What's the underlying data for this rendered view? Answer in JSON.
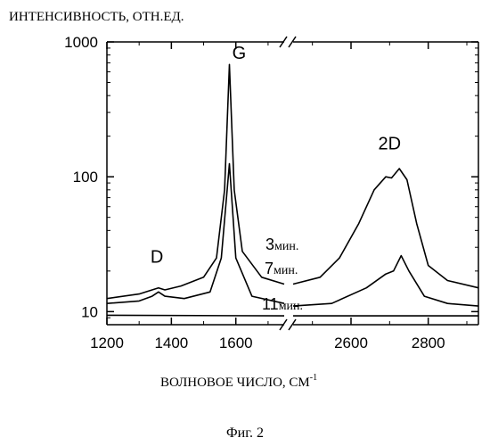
{
  "chart_data": {
    "type": "line",
    "ylabel": "ИНТЕНСИВНОСТЬ, ОТН.ЕД.",
    "xlabel_main": "ВОЛНОВОЕ ЧИСЛО, СМ",
    "xlabel_sup": "-1",
    "figure_caption": "Фиг. 2",
    "y_scale": "log",
    "ylim": [
      8,
      1000
    ],
    "y_ticks": [
      10,
      100,
      1000
    ],
    "y_tick_labels": [
      "10",
      "100",
      "1000"
    ],
    "x_axis_break": true,
    "x_segments": [
      {
        "xlim": [
          1200,
          1750
        ],
        "ticks": [
          1200,
          1400,
          1600
        ],
        "tick_labels": [
          "1200",
          "1400",
          "1600"
        ]
      },
      {
        "xlim": [
          2450,
          2930
        ],
        "ticks": [
          2600,
          2800
        ],
        "tick_labels": [
          "2600",
          "2800"
        ]
      }
    ],
    "peak_labels": [
      {
        "text": "D",
        "x": 1355,
        "y": 23
      },
      {
        "text": "G",
        "x": 1610,
        "y": 750
      },
      {
        "text": "2D",
        "x": 2700,
        "y": 160
      }
    ],
    "series": [
      {
        "name": "3 мин.",
        "label_parts": [
          "3",
          "мин."
        ],
        "points": [
          [
            1200,
            12.5
          ],
          [
            1300,
            13.5
          ],
          [
            1340,
            14.5
          ],
          [
            1360,
            15
          ],
          [
            1380,
            14.5
          ],
          [
            1430,
            15.5
          ],
          [
            1500,
            18
          ],
          [
            1540,
            25
          ],
          [
            1565,
            80
          ],
          [
            1580,
            680
          ],
          [
            1595,
            80
          ],
          [
            1620,
            28
          ],
          [
            1680,
            18
          ],
          [
            1750,
            16
          ],
          [
            2450,
            16
          ],
          [
            2520,
            18
          ],
          [
            2570,
            25
          ],
          [
            2620,
            45
          ],
          [
            2660,
            80
          ],
          [
            2690,
            100
          ],
          [
            2705,
            98
          ],
          [
            2725,
            115
          ],
          [
            2745,
            95
          ],
          [
            2770,
            45
          ],
          [
            2800,
            22
          ],
          [
            2850,
            17
          ],
          [
            2930,
            15
          ]
        ]
      },
      {
        "name": "7 мин.",
        "label_parts": [
          "7",
          "мин."
        ],
        "points": [
          [
            1200,
            11.5
          ],
          [
            1300,
            12
          ],
          [
            1340,
            13
          ],
          [
            1360,
            14
          ],
          [
            1380,
            13
          ],
          [
            1440,
            12.5
          ],
          [
            1520,
            14
          ],
          [
            1555,
            25
          ],
          [
            1580,
            125
          ],
          [
            1600,
            25
          ],
          [
            1650,
            13
          ],
          [
            1750,
            11.5
          ],
          [
            2450,
            11
          ],
          [
            2550,
            11.5
          ],
          [
            2640,
            15
          ],
          [
            2690,
            19
          ],
          [
            2710,
            20
          ],
          [
            2730,
            26
          ],
          [
            2750,
            20
          ],
          [
            2790,
            13
          ],
          [
            2850,
            11.5
          ],
          [
            2930,
            11
          ]
        ]
      },
      {
        "name": "11 мин.",
        "label_parts": [
          "11",
          "мин."
        ],
        "points": [
          [
            1200,
            9.4
          ],
          [
            1750,
            9.3
          ],
          [
            2450,
            9.3
          ],
          [
            2930,
            9.3
          ]
        ]
      }
    ]
  }
}
